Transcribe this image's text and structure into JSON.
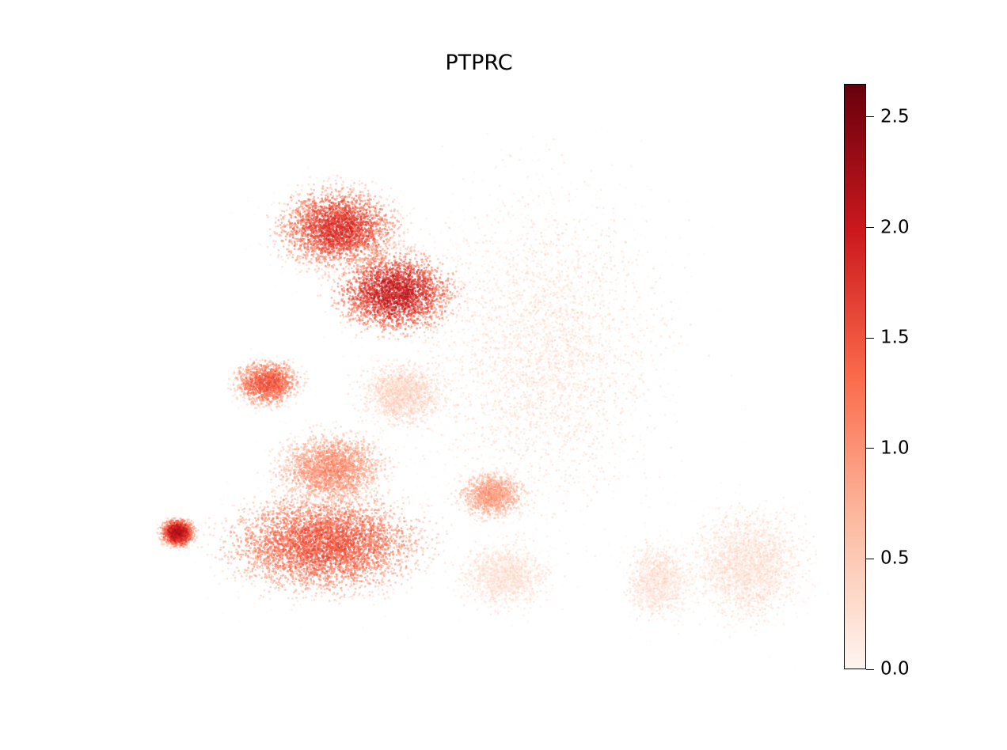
{
  "chart_data": {
    "type": "scatter",
    "title": "PTPRC",
    "xlabel": "",
    "ylabel": "",
    "grid": false,
    "axes_visible": false,
    "colormap": {
      "name": "Reds",
      "stops": [
        "#fff5f0",
        "#fcbba1",
        "#fb6a4a",
        "#cb181d",
        "#67000d"
      ]
    },
    "colorbar": {
      "range": [
        0.0,
        2.65
      ],
      "ticks": [
        0.0,
        0.5,
        1.0,
        1.5,
        2.0,
        2.5
      ],
      "tick_labels": [
        "0.0",
        "0.5",
        "1.0",
        "1.5",
        "2.0",
        "2.5"
      ],
      "placement": "right"
    },
    "clusters": [
      {
        "name": "",
        "center": [
          0.28,
          0.78
        ],
        "spread": [
          0.055,
          0.045
        ],
        "mean_expression": 1.55
      },
      {
        "name": "",
        "center": [
          0.37,
          0.66
        ],
        "spread": [
          0.055,
          0.045
        ],
        "mean_expression": 1.75
      },
      {
        "name": "",
        "center": [
          0.17,
          0.49
        ],
        "spread": [
          0.03,
          0.025
        ],
        "mean_expression": 1.3
      },
      {
        "name": "",
        "center": [
          0.38,
          0.47
        ],
        "spread": [
          0.04,
          0.035
        ],
        "mean_expression": 0.3
      },
      {
        "name": "",
        "center": [
          0.6,
          0.55
        ],
        "spread": [
          0.11,
          0.18
        ],
        "mean_expression": 0.12
      },
      {
        "name": "",
        "center": [
          0.26,
          0.19
        ],
        "spread": [
          0.09,
          0.055
        ],
        "mean_expression": 1.3
      },
      {
        "name": "",
        "center": [
          0.03,
          0.21
        ],
        "spread": [
          0.015,
          0.015
        ],
        "mean_expression": 1.9
      },
      {
        "name": "",
        "center": [
          0.27,
          0.33
        ],
        "spread": [
          0.05,
          0.04
        ],
        "mean_expression": 0.9
      },
      {
        "name": "",
        "center": [
          0.52,
          0.28
        ],
        "spread": [
          0.03,
          0.025
        ],
        "mean_expression": 0.8
      },
      {
        "name": "",
        "center": [
          0.54,
          0.13
        ],
        "spread": [
          0.04,
          0.035
        ],
        "mean_expression": 0.15
      },
      {
        "name": "",
        "center": [
          0.78,
          0.12
        ],
        "spread": [
          0.03,
          0.04
        ],
        "mean_expression": 0.15
      },
      {
        "name": "",
        "center": [
          0.92,
          0.15
        ],
        "spread": [
          0.05,
          0.06
        ],
        "mean_expression": 0.15
      }
    ]
  }
}
